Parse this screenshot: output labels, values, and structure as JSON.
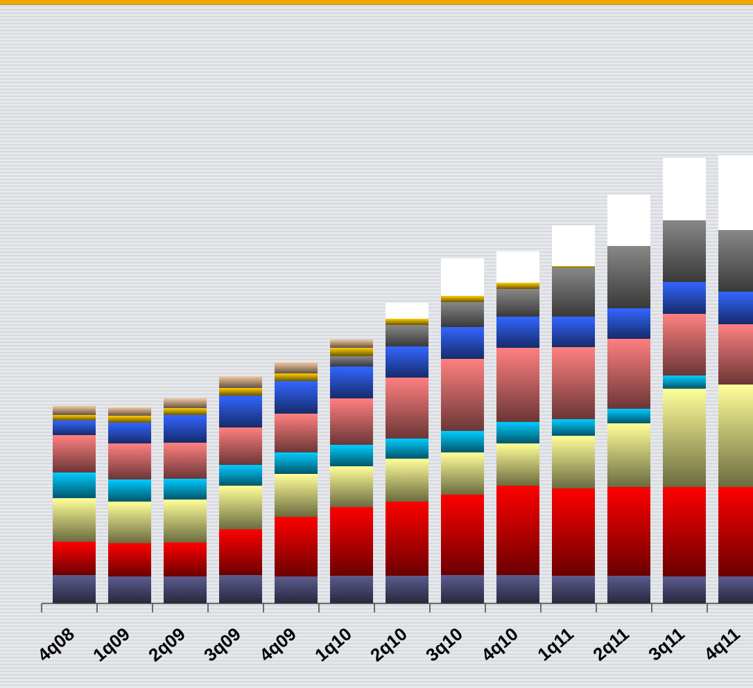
{
  "chart_data": {
    "type": "stacked_bar",
    "categories": [
      "4q08",
      "1q09",
      "2q09",
      "3q09",
      "4q09",
      "1q10",
      "2q10",
      "3q10",
      "4q10",
      "1q11",
      "2q11",
      "3q11",
      "4q11"
    ],
    "ylim": [
      0,
      871
    ],
    "series": [
      {
        "color": "#5c5c90",
        "values": [
          41,
          39,
          39,
          41,
          39,
          40,
          40,
          41,
          41,
          40,
          40,
          39,
          39
        ]
      },
      {
        "color": "#ff0000",
        "values": [
          48,
          48,
          49,
          66,
          86,
          99,
          107,
          116,
          129,
          126,
          128,
          129,
          129
        ]
      },
      {
        "color": "#ffff99",
        "values": [
          63,
          60,
          62,
          63,
          62,
          59,
          62,
          61,
          61,
          76,
          92,
          142,
          148
        ]
      },
      {
        "color": "#00ccff",
        "values": [
          37,
          32,
          30,
          30,
          31,
          31,
          29,
          31,
          31,
          24,
          21,
          19,
          0
        ]
      },
      {
        "color": "#ff8080",
        "values": [
          54,
          52,
          52,
          54,
          56,
          67,
          88,
          104,
          107,
          104,
          101,
          89,
          87
        ]
      },
      {
        "color": "#3366ff",
        "values": [
          21,
          30,
          40,
          46,
          47,
          46,
          45,
          46,
          45,
          44,
          44,
          46,
          47
        ]
      },
      {
        "color": "#888888",
        "values": [
          0,
          0,
          0,
          0,
          0,
          15,
          31,
          36,
          40,
          71,
          90,
          89,
          89
        ]
      },
      {
        "color": "#ffcc00",
        "values": [
          8,
          10,
          10,
          11,
          11,
          12,
          9,
          9,
          9,
          2,
          0,
          0,
          0
        ]
      },
      {
        "color": "#f0c8a0",
        "values": [
          13,
          12,
          14,
          17,
          16,
          12,
          0,
          0,
          0,
          0,
          0,
          0,
          0
        ]
      },
      {
        "color": "#ffffff",
        "values": [
          0,
          0,
          0,
          0,
          0,
          0,
          23,
          54,
          45,
          59,
          74,
          90,
          108
        ]
      }
    ]
  }
}
